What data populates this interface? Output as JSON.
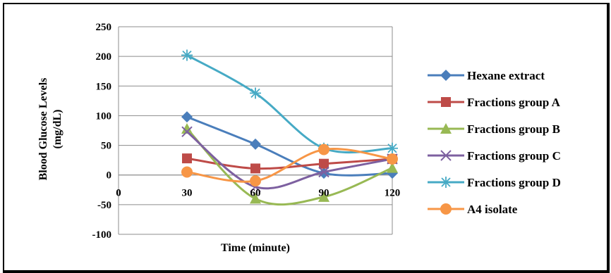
{
  "chart_data": {
    "type": "line",
    "title": "",
    "xlabel": "Time (minute)",
    "ylabel_lines": [
      "Blood Glucose Levels",
      "(mg/dL)"
    ],
    "x_ticks": [
      0,
      30,
      60,
      90,
      120
    ],
    "y_ticks": [
      -100,
      -50,
      0,
      50,
      100,
      150,
      200,
      250
    ],
    "xlim": [
      0,
      120
    ],
    "ylim": [
      -100,
      250
    ],
    "x": [
      30,
      60,
      90,
      120
    ],
    "grid": "horizontal",
    "legend_position": "right",
    "series": [
      {
        "name": "Hexane extract",
        "color": "#4A7EBB",
        "marker": "diamond",
        "values": [
          98,
          52,
          3,
          3
        ]
      },
      {
        "name": "Fractions group A",
        "color": "#BE4B48",
        "marker": "square",
        "values": [
          28,
          11,
          19,
          27
        ]
      },
      {
        "name": "Fractions group B",
        "color": "#98B954",
        "marker": "triangle",
        "values": [
          78,
          -40,
          -37,
          12
        ]
      },
      {
        "name": "Fractions group C",
        "color": "#7D60A0",
        "marker": "x",
        "values": [
          73,
          -20,
          5,
          27
        ]
      },
      {
        "name": "Fractions group D",
        "color": "#46AAC5",
        "marker": "star",
        "values": [
          202,
          138,
          45,
          45
        ]
      },
      {
        "name": "A4 isolate",
        "color": "#F79646",
        "marker": "circle",
        "values": [
          5,
          -10,
          43,
          27
        ]
      }
    ]
  }
}
